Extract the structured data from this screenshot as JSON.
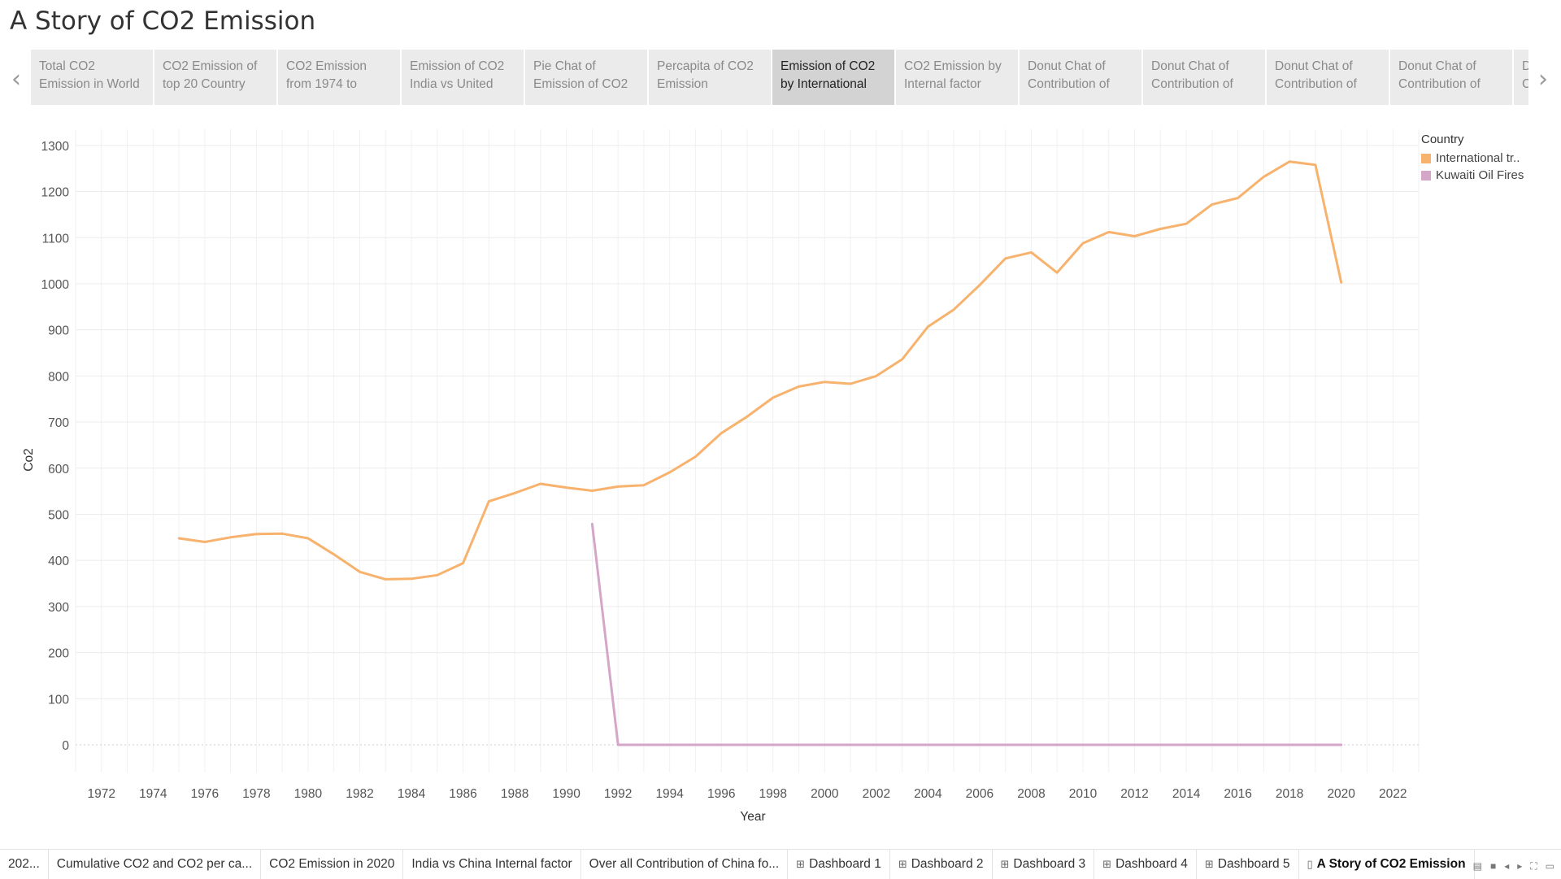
{
  "title": "A Story of CO2 Emission",
  "story_points": [
    {
      "label": "Total CO2 Emission in World",
      "active": false
    },
    {
      "label": "CO2 Emission of top 20 Country",
      "active": false
    },
    {
      "label": "CO2 Emission from 1974 to",
      "active": false
    },
    {
      "label": "Emission of CO2 India vs United",
      "active": false
    },
    {
      "label": "Pie Chat of Emission of CO2",
      "active": false
    },
    {
      "label": "Percapita of CO2 Emission",
      "active": false
    },
    {
      "label": "Emission of CO2 by International",
      "active": true
    },
    {
      "label": "CO2 Emission by Internal factor",
      "active": false
    },
    {
      "label": "Donut Chat of Contribution of",
      "active": false
    },
    {
      "label": "Donut Chat of Contribution of",
      "active": false
    },
    {
      "label": "Donut Chat of Contribution of",
      "active": false
    },
    {
      "label": "Donut Chat of Contribution of",
      "active": false
    },
    {
      "label": "Donut Chat of Contribution of",
      "active": false
    }
  ],
  "nav": {
    "prev_icon": "chevron-left-icon",
    "next_icon": "chevron-right-icon"
  },
  "chart_data": {
    "type": "line",
    "xlabel": "Year",
    "ylabel": "Co2",
    "xlim": [
      1971,
      2023
    ],
    "ylim": [
      -60,
      1335
    ],
    "x_ticks": [
      1972,
      1974,
      1976,
      1978,
      1980,
      1982,
      1984,
      1986,
      1988,
      1990,
      1992,
      1994,
      1996,
      1998,
      2000,
      2002,
      2004,
      2006,
      2008,
      2010,
      2012,
      2014,
      2016,
      2018,
      2020,
      2022
    ],
    "y_ticks": [
      0,
      100,
      200,
      300,
      400,
      500,
      600,
      700,
      800,
      900,
      1000,
      1100,
      1200,
      1300
    ],
    "grid": true,
    "legend_title": "Country",
    "legend_position": "top-right",
    "series": [
      {
        "name": "International tr..",
        "color": "#f7b26e",
        "points": [
          [
            1975,
            448
          ],
          [
            1976,
            440
          ],
          [
            1977,
            450
          ],
          [
            1978,
            457
          ],
          [
            1979,
            458
          ],
          [
            1980,
            448
          ],
          [
            1981,
            413
          ],
          [
            1982,
            375
          ],
          [
            1983,
            359
          ],
          [
            1984,
            360
          ],
          [
            1985,
            368
          ],
          [
            1986,
            394
          ],
          [
            1987,
            528
          ],
          [
            1988,
            546
          ],
          [
            1989,
            566
          ],
          [
            1990,
            558
          ],
          [
            1991,
            551
          ],
          [
            1992,
            560
          ],
          [
            1993,
            563
          ],
          [
            1994,
            591
          ],
          [
            1995,
            625
          ],
          [
            1996,
            676
          ],
          [
            1997,
            712
          ],
          [
            1998,
            753
          ],
          [
            1999,
            777
          ],
          [
            2000,
            787
          ],
          [
            2001,
            783
          ],
          [
            2002,
            800
          ],
          [
            2003,
            836
          ],
          [
            2004,
            907
          ],
          [
            2005,
            944
          ],
          [
            2006,
            997
          ],
          [
            2007,
            1055
          ],
          [
            2008,
            1068
          ],
          [
            2009,
            1024
          ],
          [
            2010,
            1088
          ],
          [
            2011,
            1112
          ],
          [
            2012,
            1103
          ],
          [
            2013,
            1119
          ],
          [
            2014,
            1130
          ],
          [
            2015,
            1172
          ],
          [
            2016,
            1186
          ],
          [
            2017,
            1232
          ],
          [
            2018,
            1265
          ],
          [
            2019,
            1258
          ],
          [
            2020,
            1003
          ]
        ]
      },
      {
        "name": "Kuwaiti Oil Fires",
        "color": "#d4a6c8",
        "points": [
          [
            1991,
            479
          ],
          [
            1992,
            0
          ],
          [
            1993,
            0
          ],
          [
            1994,
            0
          ],
          [
            1995,
            0
          ],
          [
            1996,
            0
          ],
          [
            1997,
            0
          ],
          [
            1998,
            0
          ],
          [
            1999,
            0
          ],
          [
            2000,
            0
          ],
          [
            2001,
            0
          ],
          [
            2002,
            0
          ],
          [
            2003,
            0
          ],
          [
            2004,
            0
          ],
          [
            2005,
            0
          ],
          [
            2006,
            0
          ],
          [
            2007,
            0
          ],
          [
            2008,
            0
          ],
          [
            2009,
            0
          ],
          [
            2010,
            0
          ],
          [
            2011,
            0
          ],
          [
            2012,
            0
          ],
          [
            2013,
            0
          ],
          [
            2014,
            0
          ],
          [
            2015,
            0
          ],
          [
            2016,
            0
          ],
          [
            2017,
            0
          ],
          [
            2018,
            0
          ],
          [
            2019,
            0
          ],
          [
            2020,
            0
          ]
        ]
      }
    ]
  },
  "sheet_tabs": [
    {
      "label": "202...",
      "icon": "",
      "active": false
    },
    {
      "label": "Cumulative CO2 and CO2 per ca...",
      "icon": "",
      "active": false
    },
    {
      "label": "CO2 Emission in 2020",
      "icon": "",
      "active": false
    },
    {
      "label": "India vs China Internal factor",
      "icon": "",
      "active": false
    },
    {
      "label": "Over all Contribution of China fo...",
      "icon": "",
      "active": false
    },
    {
      "label": "Dashboard 1",
      "icon": "dashboard-icon",
      "active": false
    },
    {
      "label": "Dashboard 2",
      "icon": "dashboard-icon",
      "active": false
    },
    {
      "label": "Dashboard 3",
      "icon": "dashboard-icon",
      "active": false
    },
    {
      "label": "Dashboard 4",
      "icon": "dashboard-icon",
      "active": false
    },
    {
      "label": "Dashboard 5",
      "icon": "dashboard-icon",
      "active": false
    },
    {
      "label": "A Story of CO2 Emission",
      "icon": "story-icon",
      "active": true
    }
  ],
  "tray_icons": [
    "grid-view-icon",
    "single-view-icon",
    "prev-sheet-icon",
    "next-sheet-icon",
    "fullscreen-icon",
    "present-icon"
  ]
}
